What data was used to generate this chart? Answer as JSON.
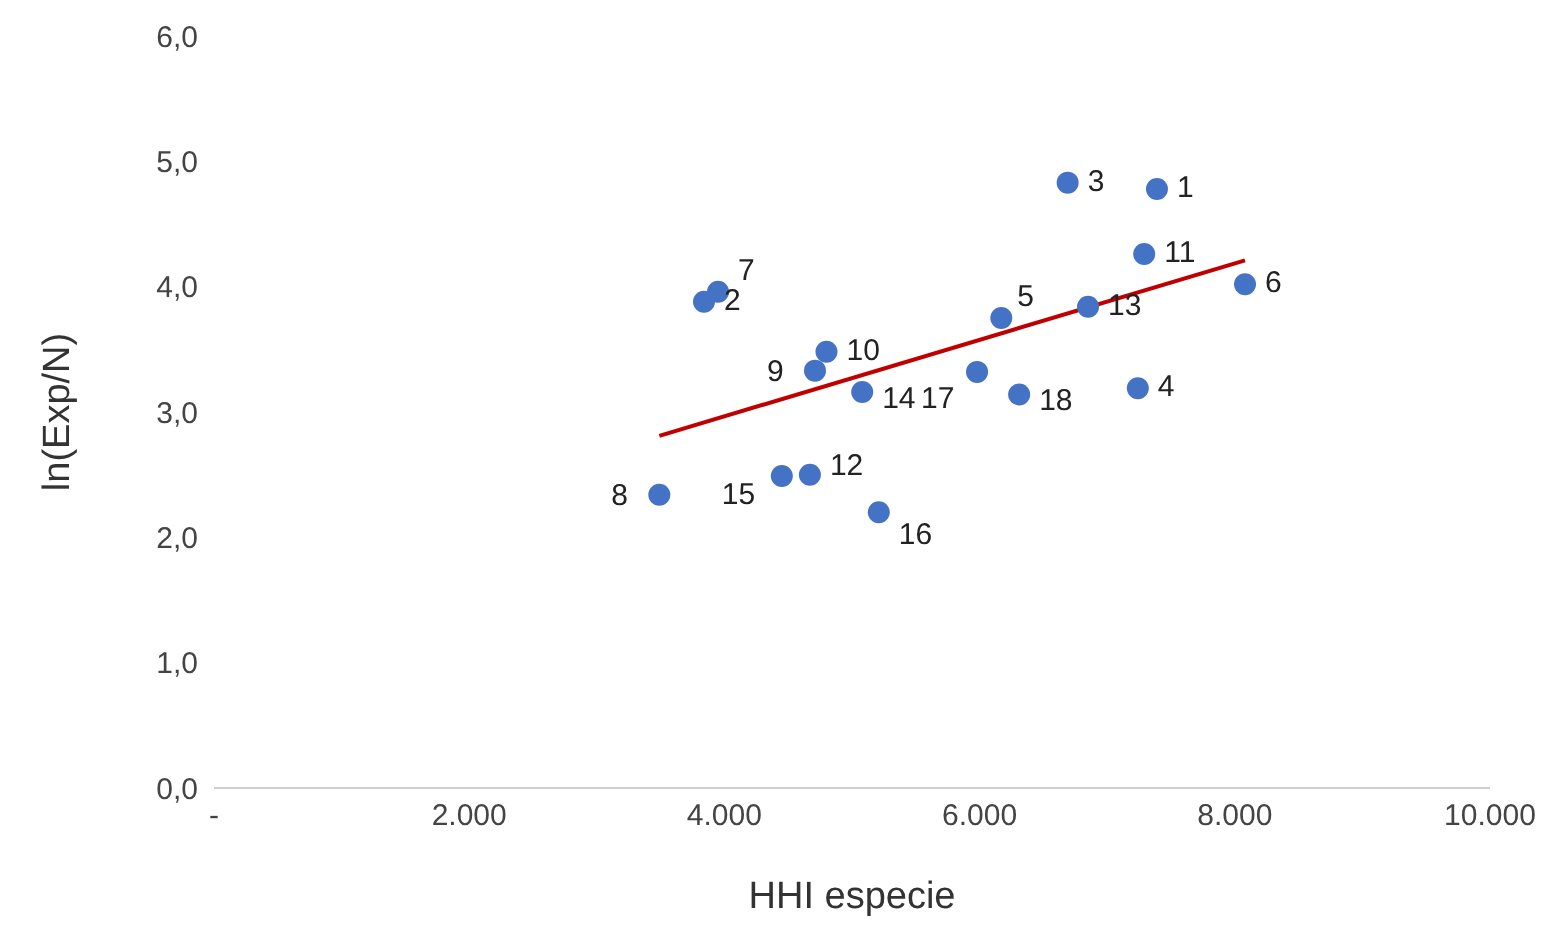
{
  "chart_data": {
    "type": "scatter",
    "xlabel": "HHI especie",
    "ylabel": "ln(Exp/N)",
    "xlim": [
      0,
      10000
    ],
    "xticks": [
      {
        "value": 0,
        "label": "-"
      },
      {
        "value": 2000,
        "label": "2.000"
      },
      {
        "value": 4000,
        "label": "4.000"
      },
      {
        "value": 6000,
        "label": "6.000"
      },
      {
        "value": 8000,
        "label": "8.000"
      },
      {
        "value": 10000,
        "label": "10.000"
      }
    ],
    "ylim": [
      0,
      6
    ],
    "yticks": [
      {
        "value": 0,
        "label": "0,0"
      },
      {
        "value": 1,
        "label": "1,0"
      },
      {
        "value": 2,
        "label": "2,0"
      },
      {
        "value": 3,
        "label": "3,0"
      },
      {
        "value": 4,
        "label": "4,0"
      },
      {
        "value": 5,
        "label": "5,0"
      },
      {
        "value": 6,
        "label": "6,0"
      }
    ],
    "marker": "circle",
    "series": [
      {
        "color": "#4472c4",
        "x": [
          7390,
          3840,
          6690,
          7240,
          6170,
          8080,
          3950,
          3490,
          4710,
          4800,
          7290,
          4670,
          6850,
          5080,
          4450,
          5210,
          5980,
          6310
        ],
        "values": [
          4.78,
          3.88,
          4.83,
          3.19,
          3.75,
          4.02,
          3.96,
          2.34,
          3.33,
          3.48,
          4.26,
          2.5,
          3.84,
          3.16,
          2.49,
          2.2,
          3.32,
          3.14
        ]
      },
      {
        "type": "line",
        "color": "#c00000",
        "marker": "none",
        "x": [
          3490,
          8080
        ],
        "values": [
          2.81,
          4.21
        ]
      }
    ],
    "annotations": [
      {
        "text": "1",
        "x": 7390,
        "y": 4.78
      },
      {
        "text": "2",
        "x": 3840,
        "y": 3.88
      },
      {
        "text": "3",
        "x": 6690,
        "y": 4.83
      },
      {
        "text": "4",
        "x": 7240,
        "y": 3.19
      },
      {
        "text": "5",
        "x": 6170,
        "y": 3.75
      },
      {
        "text": "6",
        "x": 8080,
        "y": 4.02
      },
      {
        "text": "7",
        "x": 3950,
        "y": 3.96
      },
      {
        "text": "8",
        "x": 3490,
        "y": 2.34
      },
      {
        "text": "9",
        "x": 4710,
        "y": 3.33
      },
      {
        "text": "10",
        "x": 4800,
        "y": 3.48
      },
      {
        "text": "11",
        "x": 7290,
        "y": 4.26
      },
      {
        "text": "12",
        "x": 4670,
        "y": 2.5
      },
      {
        "text": "13",
        "x": 6850,
        "y": 3.84
      },
      {
        "text": "14",
        "x": 5080,
        "y": 3.16
      },
      {
        "text": "15",
        "x": 4450,
        "y": 2.49
      },
      {
        "text": "16",
        "x": 5210,
        "y": 2.2
      },
      {
        "text": "17",
        "x": 5980,
        "y": 3.32
      },
      {
        "text": "18",
        "x": 6310,
        "y": 3.14
      }
    ]
  }
}
